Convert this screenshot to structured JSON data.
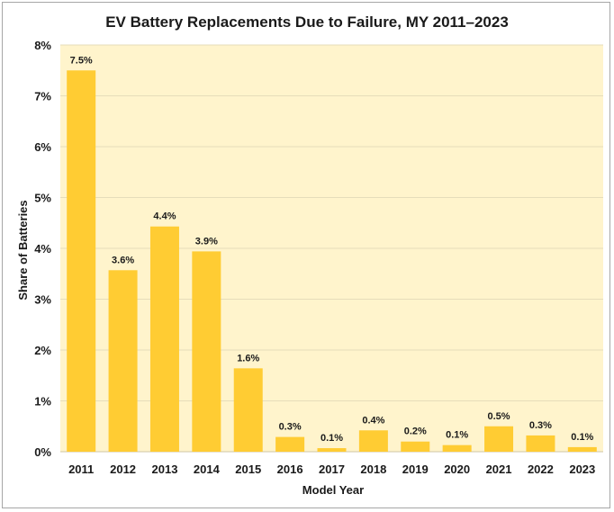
{
  "chart_data": {
    "type": "bar",
    "title": "EV Battery Replacements Due to Failure, MY 2011–2023",
    "xlabel": "Model Year",
    "ylabel": "Share of Batteries",
    "categories": [
      "2011",
      "2012",
      "2013",
      "2014",
      "2015",
      "2016",
      "2017",
      "2018",
      "2019",
      "2020",
      "2021",
      "2022",
      "2023"
    ],
    "values": [
      7.5,
      3.6,
      4.4,
      3.9,
      1.6,
      0.3,
      0.1,
      0.4,
      0.2,
      0.1,
      0.5,
      0.3,
      0.1
    ],
    "bar_heights": [
      7.5,
      3.57,
      4.43,
      3.94,
      1.64,
      0.29,
      0.07,
      0.42,
      0.2,
      0.13,
      0.5,
      0.32,
      0.09
    ],
    "data_labels": [
      "7.5%",
      "3.6%",
      "4.4%",
      "3.9%",
      "1.6%",
      "0.3%",
      "0.1%",
      "0.4%",
      "0.2%",
      "0.1%",
      "0.5%",
      "0.3%",
      "0.1%"
    ],
    "y_ticks": [
      "0%",
      "1%",
      "2%",
      "3%",
      "4%",
      "5%",
      "6%",
      "7%",
      "8%"
    ],
    "ylim": [
      0,
      8
    ],
    "grid": true,
    "colors": {
      "bar": "#FFCC33",
      "plot_bg": "#FFF4CC",
      "grid": "#E6DDBA"
    }
  }
}
